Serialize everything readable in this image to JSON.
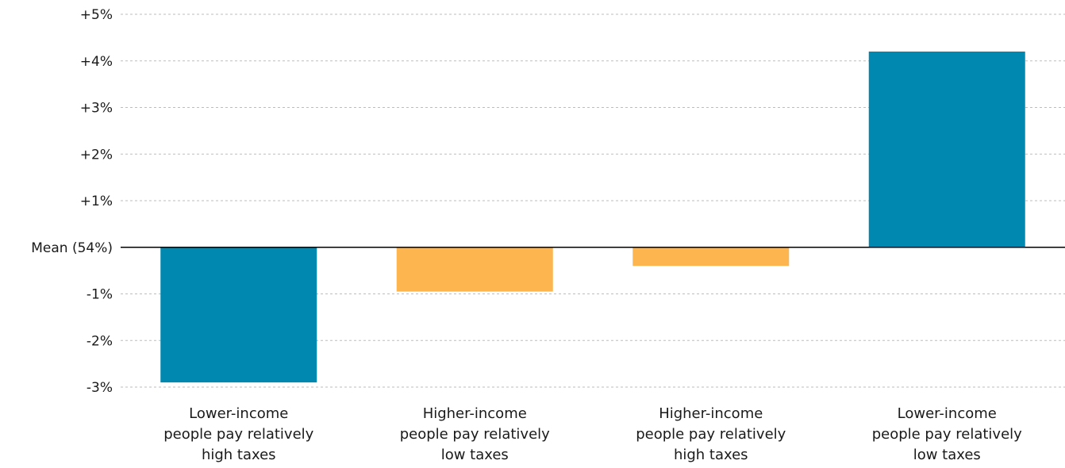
{
  "chart_data": {
    "type": "bar",
    "title": "",
    "xlabel": "",
    "ylabel": "",
    "baseline_label": "Mean (54%)",
    "ylim": [
      -3,
      5
    ],
    "yticks": [
      {
        "value": 5,
        "label": "+5%"
      },
      {
        "value": 4,
        "label": "+4%"
      },
      {
        "value": 3,
        "label": "+3%"
      },
      {
        "value": 2,
        "label": "+2%"
      },
      {
        "value": 1,
        "label": "+1%"
      },
      {
        "value": 0,
        "label": "Mean (54%)"
      },
      {
        "value": -1,
        "label": "-1%"
      },
      {
        "value": -2,
        "label": "-2%"
      },
      {
        "value": -3,
        "label": "-3%"
      }
    ],
    "grid": true,
    "categories": [
      [
        "Lower-income",
        "people pay relatively",
        "high taxes"
      ],
      [
        "Higher-income",
        "people pay relatively",
        "low taxes"
      ],
      [
        "Higher-income",
        "people pay relatively",
        "high taxes"
      ],
      [
        "Lower-income",
        "people pay relatively",
        "low taxes"
      ]
    ],
    "values": [
      -2.9,
      -0.95,
      -0.4,
      4.2
    ],
    "colors": [
      "#0088B0",
      "#FDB54F",
      "#FDB54F",
      "#0088B0"
    ]
  }
}
